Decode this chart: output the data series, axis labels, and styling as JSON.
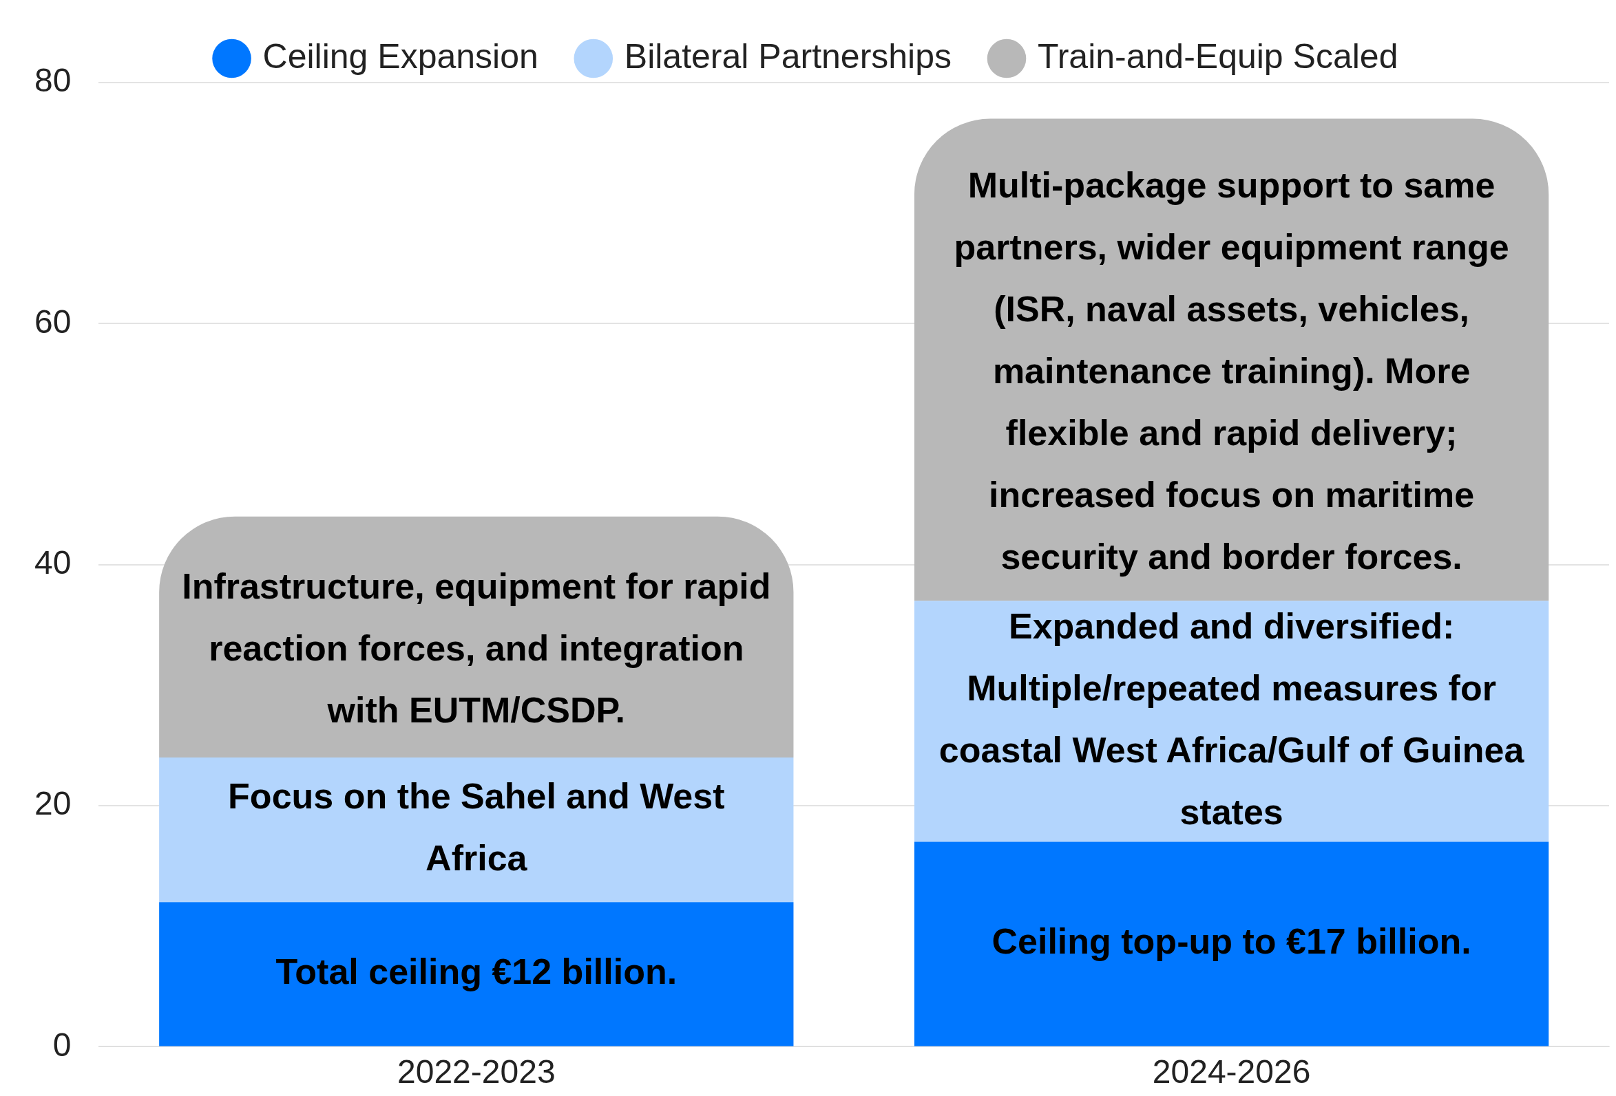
{
  "chart_data": {
    "type": "bar",
    "stacked": true,
    "categories": [
      "2022-2023",
      "2024-2026"
    ],
    "series": [
      {
        "name": "Ceiling Expansion",
        "color": "#0077ff",
        "values": [
          12,
          17
        ],
        "value_labels": [
          "Total ceiling €12 billion.",
          "Ceiling top-up to €17 billion."
        ]
      },
      {
        "name": "Bilateral Partnerships",
        "color": "#b3d5fd",
        "values": [
          12,
          20
        ],
        "value_labels": [
          "Focus on the Sahel and West Africa",
          "Expanded and diversified: Multiple/repeated measures for coastal West Africa/Gulf of Guinea states"
        ]
      },
      {
        "name": "Train-and-Equip Scaled",
        "color": "#b8b8b8",
        "values": [
          20,
          40
        ],
        "value_labels": [
          "Infrastructure, equipment for rapid reaction forces, and integration with EUTM/CSDP.",
          "Multi-package support to same partners, wider equipment range (ISR, naval assets, vehicles, maintenance training). More flexible and rapid delivery; increased focus on maritime security and border forces."
        ]
      }
    ],
    "ylim": [
      0,
      80
    ],
    "yticks": [
      0,
      20,
      40,
      60,
      80
    ],
    "grid": "y",
    "legend": "top"
  }
}
